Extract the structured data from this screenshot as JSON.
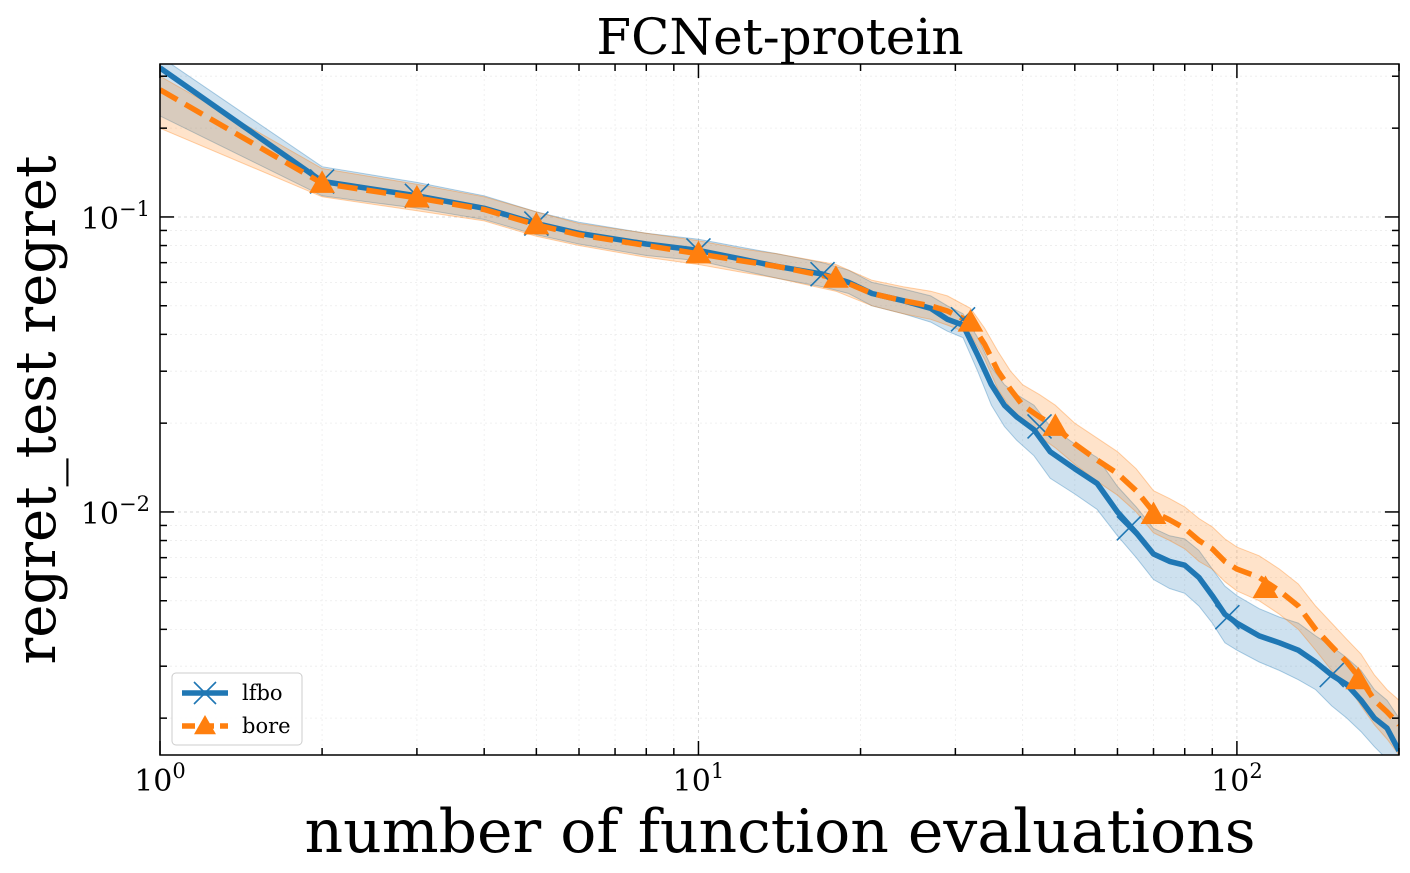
{
  "chart_data": {
    "type": "line",
    "title": "FCNet-protein",
    "xlabel": "number of function evaluations",
    "ylabel": "regret_test regret",
    "x_scale": "log",
    "y_scale": "log",
    "xlim": [
      1,
      200
    ],
    "ylim": [
      0.0015,
      0.33
    ],
    "grid": true,
    "legend_position": "lower-left",
    "x_major_ticks": [
      {
        "value": 1,
        "base": "10",
        "exp": "0"
      },
      {
        "value": 10,
        "base": "10",
        "exp": "1"
      },
      {
        "value": 100,
        "base": "10",
        "exp": "2"
      }
    ],
    "y_major_ticks": [
      {
        "value": 0.1,
        "base": "10",
        "exp": "−1"
      },
      {
        "value": 0.01,
        "base": "10",
        "exp": "−2"
      }
    ],
    "series": [
      {
        "name": "lfbo",
        "color": "#1f77b4",
        "line_style": "solid",
        "marker": "x",
        "x": [
          1,
          2,
          3,
          4,
          5,
          6,
          8,
          10,
          12,
          14,
          17,
          19,
          21,
          24,
          27,
          29,
          31,
          33,
          35,
          37,
          39,
          42,
          45,
          50,
          55,
          60,
          65,
          70,
          75,
          80,
          85,
          90,
          95,
          100,
          110,
          120,
          130,
          140,
          150,
          160,
          170,
          180,
          190,
          200
        ],
        "y": [
          0.32,
          0.132,
          0.118,
          0.107,
          0.095,
          0.088,
          0.081,
          0.077,
          0.072,
          0.068,
          0.064,
          0.06,
          0.055,
          0.052,
          0.049,
          0.045,
          0.043,
          0.034,
          0.027,
          0.023,
          0.021,
          0.019,
          0.016,
          0.014,
          0.0125,
          0.01,
          0.0085,
          0.0072,
          0.0068,
          0.0066,
          0.006,
          0.0052,
          0.0045,
          0.0042,
          0.0038,
          0.0036,
          0.0034,
          0.0031,
          0.0028,
          0.0026,
          0.0023,
          0.002,
          0.00185,
          0.00155
        ],
        "lower": [
          0.22,
          0.118,
          0.107,
          0.098,
          0.087,
          0.081,
          0.074,
          0.071,
          0.066,
          0.062,
          0.058,
          0.055,
          0.05,
          0.047,
          0.044,
          0.041,
          0.039,
          0.03,
          0.023,
          0.0195,
          0.0175,
          0.0155,
          0.013,
          0.0115,
          0.0102,
          0.0083,
          0.007,
          0.0059,
          0.0055,
          0.0053,
          0.0048,
          0.0042,
          0.0036,
          0.0034,
          0.0031,
          0.0029,
          0.0027,
          0.0025,
          0.0022,
          0.002,
          0.0018,
          0.0016,
          0.00145,
          0.0013
        ],
        "upper": [
          0.35,
          0.148,
          0.131,
          0.118,
          0.104,
          0.096,
          0.088,
          0.084,
          0.079,
          0.075,
          0.07,
          0.066,
          0.06,
          0.057,
          0.054,
          0.05,
          0.047,
          0.039,
          0.031,
          0.027,
          0.025,
          0.023,
          0.0195,
          0.017,
          0.0153,
          0.0122,
          0.0104,
          0.0088,
          0.0083,
          0.0081,
          0.0074,
          0.0064,
          0.0056,
          0.0052,
          0.0047,
          0.0044,
          0.0042,
          0.0038,
          0.0035,
          0.0032,
          0.0029,
          0.0025,
          0.0023,
          0.002
        ],
        "markers_x": [
          2,
          3,
          5,
          10,
          17,
          31,
          43,
          63,
          96,
          150
        ],
        "markers_y": [
          0.132,
          0.118,
          0.095,
          0.077,
          0.064,
          0.045,
          0.0195,
          0.0088,
          0.0044,
          0.0028
        ]
      },
      {
        "name": "bore",
        "color": "#ff7f0e",
        "line_style": "dashed",
        "marker": "^",
        "x": [
          1,
          2,
          3,
          4,
          5,
          6,
          8,
          10,
          12,
          14,
          18,
          21,
          24,
          27,
          29,
          32,
          34,
          36,
          38,
          40,
          43,
          46,
          50,
          55,
          60,
          65,
          70,
          75,
          80,
          85,
          90,
          95,
          100,
          110,
          120,
          130,
          140,
          150,
          160,
          170,
          180,
          190,
          200
        ],
        "y": [
          0.27,
          0.13,
          0.116,
          0.106,
          0.094,
          0.087,
          0.08,
          0.075,
          0.071,
          0.068,
          0.062,
          0.055,
          0.052,
          0.05,
          0.048,
          0.044,
          0.037,
          0.03,
          0.026,
          0.023,
          0.021,
          0.0195,
          0.017,
          0.015,
          0.0135,
          0.0118,
          0.01,
          0.0094,
          0.0088,
          0.008,
          0.0075,
          0.0068,
          0.0064,
          0.006,
          0.0054,
          0.0048,
          0.004,
          0.0035,
          0.0031,
          0.0027,
          0.0023,
          0.0021,
          0.0019
        ],
        "lower": [
          0.2,
          0.117,
          0.105,
          0.097,
          0.086,
          0.08,
          0.073,
          0.069,
          0.065,
          0.062,
          0.056,
          0.05,
          0.047,
          0.045,
          0.043,
          0.04,
          0.033,
          0.026,
          0.0225,
          0.02,
          0.018,
          0.0165,
          0.0145,
          0.0127,
          0.0114,
          0.01,
          0.0085,
          0.008,
          0.0075,
          0.0068,
          0.0064,
          0.0058,
          0.0054,
          0.005,
          0.0045,
          0.004,
          0.0034,
          0.0029,
          0.0026,
          0.0022,
          0.0019,
          0.0017,
          0.0015
        ],
        "upper": [
          0.3,
          0.146,
          0.129,
          0.117,
          0.104,
          0.095,
          0.088,
          0.083,
          0.078,
          0.075,
          0.069,
          0.061,
          0.058,
          0.056,
          0.054,
          0.049,
          0.042,
          0.035,
          0.03,
          0.027,
          0.025,
          0.023,
          0.02,
          0.0178,
          0.016,
          0.014,
          0.0118,
          0.0111,
          0.0104,
          0.0095,
          0.0089,
          0.0081,
          0.0076,
          0.0071,
          0.0064,
          0.0057,
          0.0048,
          0.0042,
          0.0037,
          0.0033,
          0.0028,
          0.0025,
          0.0023
        ],
        "markers_x": [
          2,
          3,
          5,
          10,
          18,
          32,
          46,
          70,
          113,
          168
        ],
        "markers_y": [
          0.13,
          0.116,
          0.094,
          0.075,
          0.062,
          0.044,
          0.0195,
          0.0098,
          0.0055,
          0.0027
        ]
      }
    ]
  }
}
